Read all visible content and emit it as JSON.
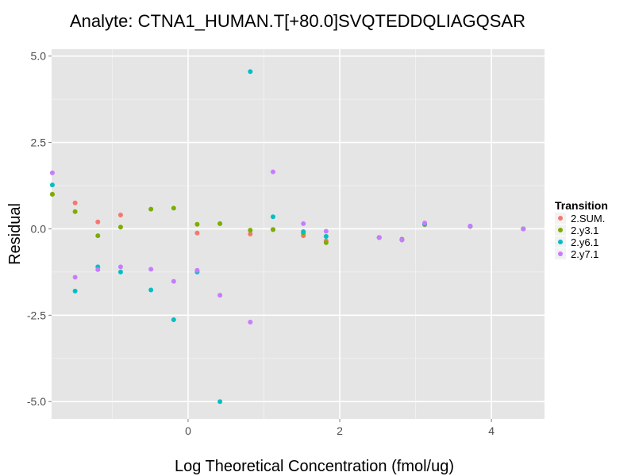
{
  "chart_data": {
    "type": "scatter",
    "title": "Analyte: CTNA1_HUMAN.T[+80.0]SVQTEDDQLIAGQSAR",
    "xlabel": "Log Theoretical Concentration (fmol/ug)",
    "ylabel": "Residual",
    "xlim": [
      -1.8,
      4.7
    ],
    "ylim": [
      -5.5,
      5.2
    ],
    "x_ticks": [
      0,
      2,
      4
    ],
    "x_tick_labels": [
      "0",
      "2",
      "4"
    ],
    "y_ticks": [
      -5,
      -2.5,
      0,
      2.5,
      5
    ],
    "y_tick_labels": [
      "-5.0",
      "-2.5",
      "0.0",
      "2.5",
      "5.0"
    ],
    "grid": true,
    "legend": {
      "title": "Transition",
      "placement": "right"
    },
    "series": [
      {
        "name": "2.SUM.",
        "color": "#F8766D",
        "points": [
          [
            -1.79,
            1.0
          ],
          [
            -1.49,
            0.75
          ],
          [
            -1.19,
            0.2
          ],
          [
            -0.89,
            0.4
          ],
          [
            0.12,
            -0.12
          ],
          [
            0.42,
            0.15
          ],
          [
            0.82,
            -0.15
          ],
          [
            1.12,
            -0.02
          ],
          [
            1.52,
            -0.2
          ],
          [
            1.82,
            -0.35
          ],
          [
            2.52,
            -0.25
          ],
          [
            2.82,
            -0.32
          ],
          [
            3.12,
            0.12
          ],
          [
            3.72,
            0.07
          ],
          [
            4.42,
            0.0
          ]
        ]
      },
      {
        "name": "2.y3.1",
        "color": "#7CAE00",
        "points": [
          [
            -1.79,
            1.0
          ],
          [
            -1.49,
            0.5
          ],
          [
            -1.19,
            -0.2
          ],
          [
            -0.89,
            0.05
          ],
          [
            -0.49,
            0.57
          ],
          [
            -0.19,
            0.6
          ],
          [
            0.12,
            0.13
          ],
          [
            0.42,
            0.15
          ],
          [
            0.82,
            -0.04
          ],
          [
            1.12,
            -0.02
          ],
          [
            1.52,
            -0.12
          ],
          [
            1.82,
            -0.4
          ],
          [
            2.52,
            -0.25
          ],
          [
            2.82,
            -0.3
          ],
          [
            3.12,
            0.13
          ],
          [
            3.72,
            0.07
          ],
          [
            4.42,
            0.0
          ]
        ]
      },
      {
        "name": "2.y6.1",
        "color": "#00BFC4",
        "points": [
          [
            -1.79,
            1.27
          ],
          [
            -1.49,
            -1.8
          ],
          [
            -1.19,
            -1.1
          ],
          [
            -0.89,
            -1.25
          ],
          [
            -0.49,
            -1.77
          ],
          [
            -0.19,
            -2.63
          ],
          [
            0.12,
            -1.25
          ],
          [
            0.42,
            -5.0
          ],
          [
            0.82,
            4.55
          ],
          [
            1.12,
            0.35
          ],
          [
            1.52,
            -0.08
          ],
          [
            1.82,
            -0.22
          ],
          [
            2.52,
            -0.25
          ],
          [
            2.82,
            -0.32
          ],
          [
            3.12,
            0.14
          ],
          [
            3.72,
            0.08
          ],
          [
            4.42,
            0.0
          ]
        ]
      },
      {
        "name": "2.y7.1",
        "color": "#C77CFF",
        "points": [
          [
            -1.79,
            1.62
          ],
          [
            -1.49,
            -1.4
          ],
          [
            -1.19,
            -1.18
          ],
          [
            -0.89,
            -1.1
          ],
          [
            -0.49,
            -1.17
          ],
          [
            -0.19,
            -1.52
          ],
          [
            0.12,
            -1.2
          ],
          [
            0.42,
            -1.92
          ],
          [
            0.82,
            -2.7
          ],
          [
            1.12,
            1.65
          ],
          [
            1.52,
            0.15
          ],
          [
            1.82,
            -0.07
          ],
          [
            2.52,
            -0.25
          ],
          [
            2.82,
            -0.32
          ],
          [
            3.12,
            0.17
          ],
          [
            3.72,
            0.08
          ],
          [
            4.42,
            0.0
          ]
        ]
      }
    ]
  }
}
